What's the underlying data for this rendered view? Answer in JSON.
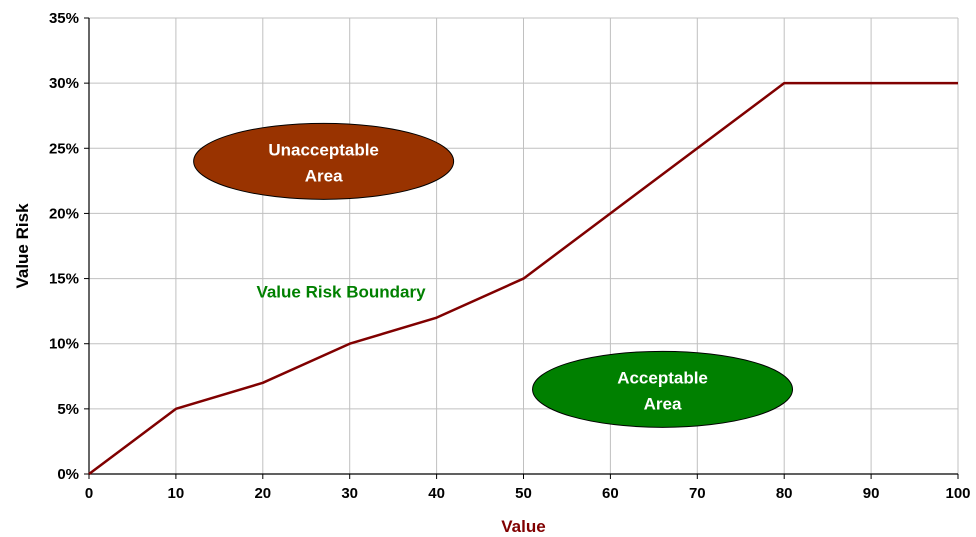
{
  "chart_data": {
    "type": "line",
    "title": "",
    "xlabel": "Value",
    "ylabel": "Value Risk",
    "xlim": [
      0,
      100
    ],
    "ylim": [
      0,
      0.35
    ],
    "grid": true,
    "x_ticks": [
      "0",
      "10",
      "20",
      "30",
      "40",
      "50",
      "60",
      "70",
      "80",
      "90",
      "100"
    ],
    "y_ticks": [
      "0%",
      "5%",
      "10%",
      "15%",
      "20%",
      "25%",
      "30%",
      "35%"
    ],
    "series": [
      {
        "x": [
          0,
          10,
          20,
          30,
          40,
          50,
          80,
          90,
          100
        ],
        "y": [
          0,
          0.05,
          0.07,
          0.1,
          0.12,
          0.15,
          0.3,
          0.3,
          0.3
        ]
      }
    ],
    "annotations": [
      {
        "line1": "Unacceptable",
        "line2": "Area",
        "x": 27,
        "y": 0.24,
        "fill": "#993300",
        "text_color": "#ffffff"
      },
      {
        "line1": "Value Risk Boundary",
        "x": 29,
        "y": 0.14,
        "text_color": "#008000"
      },
      {
        "line1": "Acceptable",
        "line2": "Area",
        "x": 66,
        "y": 0.065,
        "fill": "#008000",
        "text_color": "#ffffff"
      }
    ],
    "colors": {
      "line": "#800000",
      "xlabel": "#800000",
      "ylabel": "#000000",
      "grid": "#c0c0c0"
    }
  }
}
